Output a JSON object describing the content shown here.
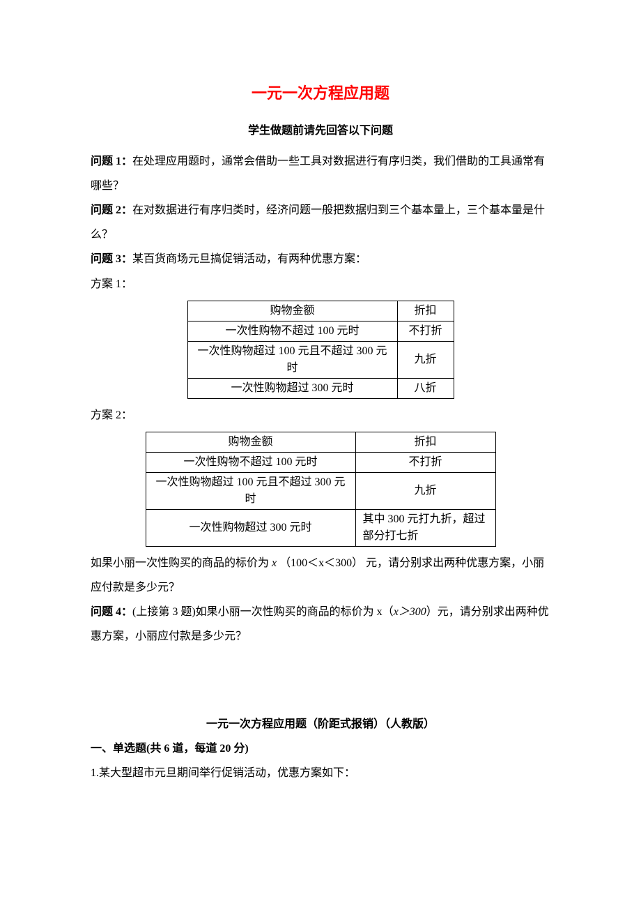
{
  "title": "一元一次方程应用题",
  "subtitle": "学生做题前请先回答以下问题",
  "q1": {
    "label": "问题 1：",
    "text": "在处理应用题时，通常会借助一些工具对数据进行有序归类，我们借助的工具通常有哪些？"
  },
  "q2": {
    "label": "问题 2：",
    "text": "在对数据进行有序归类时，经济问题一般把数据归到三个基本量上，三个基本量是什么？"
  },
  "q3": {
    "label": "问题 3：",
    "text": "某百货商场元旦搞促销活动，有两种优惠方案："
  },
  "plan1_label": "方案 1：",
  "table1": {
    "h1": "购物金额",
    "h2": "折扣",
    "r1c1": "一次性购物不超过 100 元时",
    "r1c2": "不打折",
    "r2c1": "一次性购物超过 100 元且不超过 300 元时",
    "r2c2": "九折",
    "r3c1": "一次性购物超过 300 元时",
    "r3c2": "八折"
  },
  "plan2_label": "方案 2：",
  "table2": {
    "h1": "购物金额",
    "h2": "折扣",
    "r1c1": "一次性购物不超过 100 元时",
    "r1c2": "不打折",
    "r2c1": "一次性购物超过 100 元且不超过 300 元时",
    "r2c2": "九折",
    "r3c1": "一次性购物超过 300 元时",
    "r3c2": "其中 300 元打九折，超过部分打七折"
  },
  "q3_tail_a": "如果小丽一次性购买的商品的标价为",
  "q3_var": "x",
  "q3_cond": "（100＜x＜300）",
  "q3_tail_b": "元，请分别求出两种优惠方案，小丽应付款是多少元？",
  "q4": {
    "label": "问题 4：",
    "pre": "(上接第 3 题)如果小丽一次性购买的商品的标价为 x（",
    "cond": "x＞300",
    "post": "）元，请分别求出两种优惠方案，小丽应付款是多少元？"
  },
  "section2_title": "一元一次方程应用题（阶距式报销）（人教版）",
  "mcq": {
    "heading": "一、单选题(共 6 道，每道 20 分)"
  },
  "mcq1": "1.某大型超市元旦期间举行促销活动，优惠方案如下："
}
